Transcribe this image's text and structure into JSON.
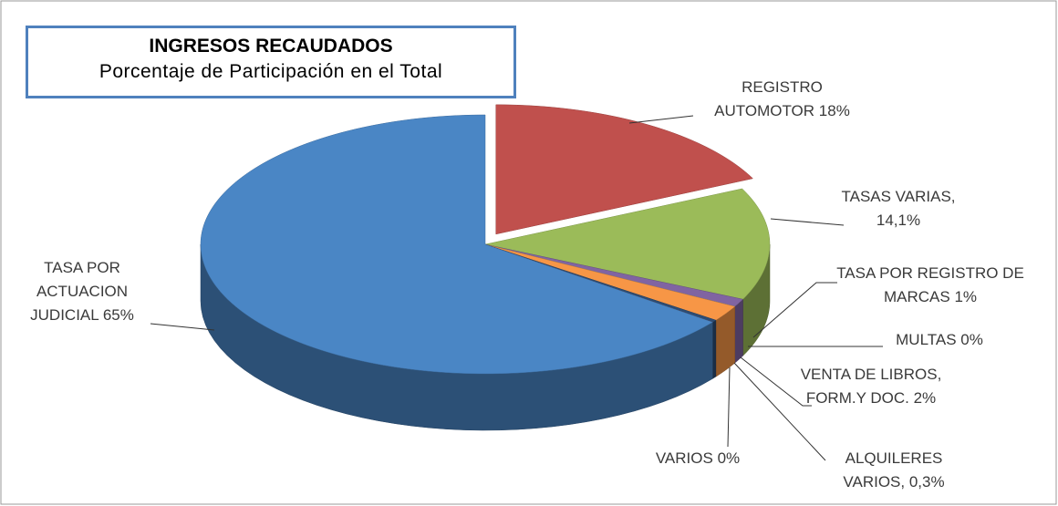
{
  "chart_data": {
    "type": "pie",
    "title": "INGRESOS RECAUDADOS",
    "subtitle": "Porcentaje de Participación en el Total",
    "categories": [
      "REGISTRO AUTOMOTOR",
      "TASAS VARIAS,",
      "TASA POR REGISTRO DE MARCAS",
      "MULTAS",
      "VENTA DE LIBROS, FORM.Y DOC.",
      "ALQUILERES VARIOS,",
      "VARIOS",
      "TASA POR ACTUACION JUDICIAL"
    ],
    "values": [
      18,
      14.1,
      1,
      0,
      2,
      0.3,
      0,
      65
    ],
    "value_labels": [
      "18%",
      "14,1%",
      "1%",
      "0%",
      "2%",
      "0,3%",
      "0%",
      "65%"
    ],
    "colors": [
      "#c0504d",
      "#9bbb59",
      "#8064a2",
      "#4bacc6",
      "#f79646",
      "#2c4d75",
      "#772c2a",
      "#4a86c5"
    ]
  }
}
